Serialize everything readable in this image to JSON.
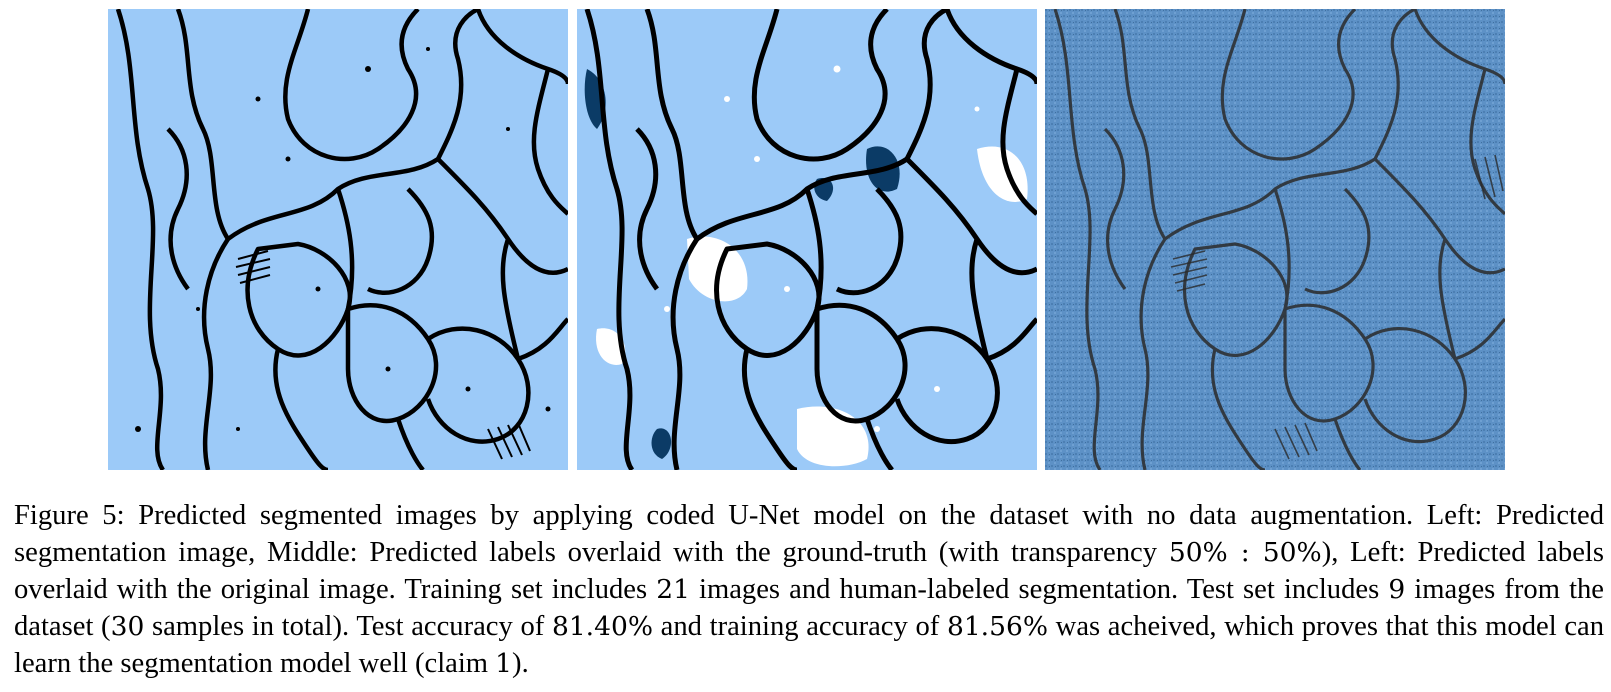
{
  "figure": {
    "panels": [
      {
        "id": "left",
        "description_icon": "predicted-segmentation-image",
        "fill": "#9ccaf8",
        "edge": "#000000",
        "background": "#9ccaf8"
      },
      {
        "id": "middle",
        "description_icon": "prediction-ground-truth-overlay-image",
        "fill": "#9ccaf8",
        "edge": "#000000",
        "background": "#9ccaf8",
        "accent": "#0b3b66",
        "highlight": "#ffffff"
      },
      {
        "id": "right",
        "description_icon": "prediction-original-overlay-image",
        "fill": "#4d82b8",
        "edge": "#2a2a2a",
        "background": "#5d91c6"
      }
    ]
  },
  "caption": {
    "lead": "Figure 5: Predicted segmented images by applying coded U-Net model on the dataset with no data augmentation. Left: Predicted segmentation image, Middle: Predicted labels overlaid with the ground-truth (with transparency ",
    "transparency": "50% : 50%",
    "part2": "), Left: Predicted labels overlaid with the original image. Training set includes ",
    "train_count": "21",
    "part3": " images and human-labeled segmentation. Test set includes ",
    "test_count": "9",
    "part4": " images from the dataset (",
    "total_count": "30",
    "part5": " samples in total). Test accuracy of ",
    "test_accuracy": "81.40%",
    "part6": " and training accuracy of ",
    "train_accuracy": "81.56%",
    "part7": " was acheived, which proves that this model can learn the segmentation model well (claim ",
    "claim_number": "1",
    "part8": ")."
  }
}
